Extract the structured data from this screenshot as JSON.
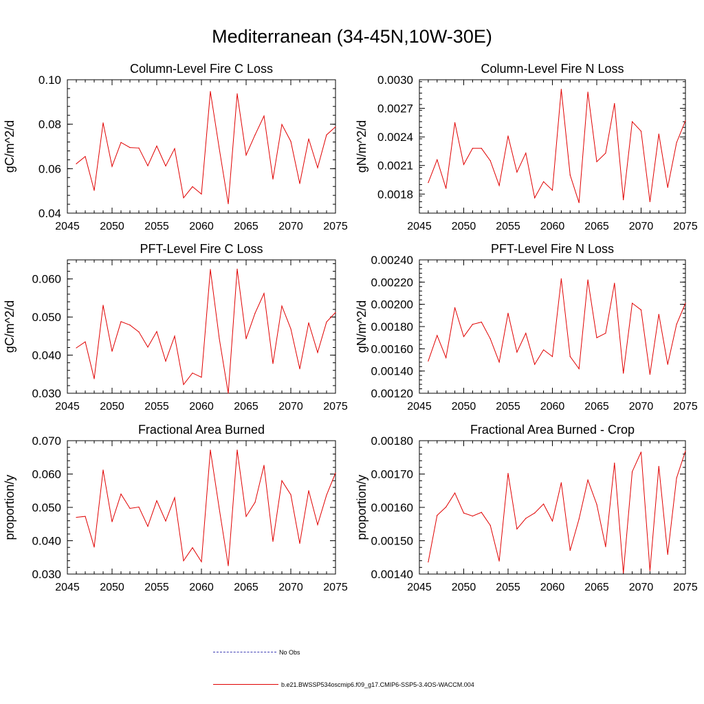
{
  "title": "Mediterranean (34-45N,10W-30E)",
  "colors": {
    "series": "#e00000",
    "obs": "#3b3bb3",
    "axis": "#000000"
  },
  "legend": {
    "obs_label": "No Obs",
    "model_label": "b.e21.BWSSP534oscmip6.f09_g17.CMIP6-SSP5-3.4OS-WACCM.004"
  },
  "chart_data": [
    {
      "type": "line",
      "title": "Column-Level Fire C Loss",
      "ylabel": "gC/m^2/d",
      "xlim": [
        2045,
        2075
      ],
      "ylim": [
        0.04,
        0.1
      ],
      "xticks": [
        2045,
        2050,
        2055,
        2060,
        2065,
        2070,
        2075
      ],
      "xtick_labels": [
        "2045",
        "2050",
        "2055",
        "2060",
        "2065",
        "2070",
        "2075"
      ],
      "yticks": [
        0.04,
        0.06,
        0.08,
        0.1
      ],
      "ytick_labels": [
        "0.04",
        "0.06",
        "0.08",
        "0.10"
      ],
      "x": [
        2046,
        2047,
        2048,
        2049,
        2050,
        2051,
        2052,
        2053,
        2054,
        2055,
        2056,
        2057,
        2058,
        2059,
        2060,
        2061,
        2062,
        2063,
        2064,
        2065,
        2066,
        2067,
        2068,
        2069,
        2070,
        2071,
        2072,
        2073,
        2074,
        2075
      ],
      "series": [
        {
          "name": "b.e21.BWSSP534oscmip6.f09_g17.CMIP6-SSP5-3.4OS-WACCM.004",
          "values": [
            0.0622,
            0.0655,
            0.0502,
            0.0806,
            0.061,
            0.0718,
            0.0695,
            0.0693,
            0.0613,
            0.0702,
            0.0612,
            0.069,
            0.0469,
            0.0519,
            0.0486,
            0.0947,
            0.0689,
            0.0442,
            0.0937,
            0.0661,
            0.0752,
            0.0837,
            0.0553,
            0.0799,
            0.0723,
            0.0533,
            0.0734,
            0.0604,
            0.0752,
            0.0788
          ]
        }
      ]
    },
    {
      "type": "line",
      "title": "Column-Level Fire N Loss",
      "ylabel": "gN/m^2/d",
      "xlim": [
        2045,
        2075
      ],
      "ylim": [
        0.0016,
        0.003
      ],
      "xticks": [
        2045,
        2050,
        2055,
        2060,
        2065,
        2070,
        2075
      ],
      "xtick_labels": [
        "2045",
        "2050",
        "2055",
        "2060",
        "2065",
        "2070",
        "2075"
      ],
      "yticks": [
        0.0018,
        0.0021,
        0.0024,
        0.0027,
        0.003
      ],
      "ytick_labels": [
        "0.0018",
        "0.0021",
        "0.0024",
        "0.0027",
        "0.0030"
      ],
      "x": [
        2046,
        2047,
        2048,
        2049,
        2050,
        2051,
        2052,
        2053,
        2054,
        2055,
        2056,
        2057,
        2058,
        2059,
        2060,
        2061,
        2062,
        2063,
        2064,
        2065,
        2066,
        2067,
        2068,
        2069,
        2070,
        2071,
        2072,
        2073,
        2074,
        2075
      ],
      "series": [
        {
          "name": "b.e21.BWSSP534oscmip6.f09_g17.CMIP6-SSP5-3.4OS-WACCM.004",
          "values": [
            0.00192,
            0.00216,
            0.00186,
            0.00255,
            0.00211,
            0.00228,
            0.00228,
            0.00215,
            0.00189,
            0.00241,
            0.00203,
            0.00223,
            0.00176,
            0.00193,
            0.00184,
            0.0029,
            0.002,
            0.00171,
            0.00287,
            0.00214,
            0.00223,
            0.00275,
            0.00174,
            0.00256,
            0.00246,
            0.00172,
            0.00243,
            0.00187,
            0.00234,
            0.00257
          ]
        }
      ]
    },
    {
      "type": "line",
      "title": "PFT-Level Fire C Loss",
      "ylabel": "gC/m^2/d",
      "xlim": [
        2045,
        2075
      ],
      "ylim": [
        0.03,
        0.065
      ],
      "xticks": [
        2045,
        2050,
        2055,
        2060,
        2065,
        2070,
        2075
      ],
      "xtick_labels": [
        "2045",
        "2050",
        "2055",
        "2060",
        "2065",
        "2070",
        "2075"
      ],
      "yticks": [
        0.03,
        0.04,
        0.05,
        0.06
      ],
      "ytick_labels": [
        "0.030",
        "0.040",
        "0.050",
        "0.060"
      ],
      "x": [
        2046,
        2047,
        2048,
        2049,
        2050,
        2051,
        2052,
        2053,
        2054,
        2055,
        2056,
        2057,
        2058,
        2059,
        2060,
        2061,
        2062,
        2063,
        2064,
        2065,
        2066,
        2067,
        2068,
        2069,
        2070,
        2071,
        2072,
        2073,
        2074,
        2075
      ],
      "series": [
        {
          "name": "b.e21.BWSSP534oscmip6.f09_g17.CMIP6-SSP5-3.4OS-WACCM.004",
          "values": [
            0.0419,
            0.0435,
            0.0338,
            0.0531,
            0.041,
            0.0488,
            0.0479,
            0.0461,
            0.0421,
            0.0462,
            0.0384,
            0.045,
            0.0323,
            0.0353,
            0.0342,
            0.0625,
            0.0443,
            0.03,
            0.0626,
            0.0443,
            0.051,
            0.0562,
            0.0378,
            0.0529,
            0.0469,
            0.0364,
            0.0485,
            0.0407,
            0.0487,
            0.0512
          ]
        }
      ]
    },
    {
      "type": "line",
      "title": "PFT-Level Fire N Loss",
      "ylabel": "gN/m^2/d",
      "xlim": [
        2045,
        2075
      ],
      "ylim": [
        0.0012,
        0.0024
      ],
      "xticks": [
        2045,
        2050,
        2055,
        2060,
        2065,
        2070,
        2075
      ],
      "xtick_labels": [
        "2045",
        "2050",
        "2055",
        "2060",
        "2065",
        "2070",
        "2075"
      ],
      "yticks": [
        0.0012,
        0.0014,
        0.0016,
        0.0018,
        0.002,
        0.0022,
        0.0024
      ],
      "ytick_labels": [
        "0.00120",
        "0.00140",
        "0.00160",
        "0.00180",
        "0.00200",
        "0.00220",
        "0.00240"
      ],
      "x": [
        2046,
        2047,
        2048,
        2049,
        2050,
        2051,
        2052,
        2053,
        2054,
        2055,
        2056,
        2057,
        2058,
        2059,
        2060,
        2061,
        2062,
        2063,
        2064,
        2065,
        2066,
        2067,
        2068,
        2069,
        2070,
        2071,
        2072,
        2073,
        2074,
        2075
      ],
      "series": [
        {
          "name": "b.e21.BWSSP534oscmip6.f09_g17.CMIP6-SSP5-3.4OS-WACCM.004",
          "values": [
            0.00149,
            0.00172,
            0.00152,
            0.00197,
            0.00171,
            0.00182,
            0.00184,
            0.00169,
            0.00148,
            0.00192,
            0.00157,
            0.00174,
            0.00146,
            0.00159,
            0.00153,
            0.00223,
            0.00153,
            0.00142,
            0.00222,
            0.0017,
            0.00174,
            0.00219,
            0.00138,
            0.00201,
            0.00195,
            0.00137,
            0.00191,
            0.00146,
            0.00182,
            0.00201
          ]
        }
      ]
    },
    {
      "type": "line",
      "title": "Fractional Area Burned",
      "ylabel": "proportion/y",
      "xlim": [
        2045,
        2075
      ],
      "ylim": [
        0.03,
        0.07
      ],
      "xticks": [
        2045,
        2050,
        2055,
        2060,
        2065,
        2070,
        2075
      ],
      "xtick_labels": [
        "2045",
        "2050",
        "2055",
        "2060",
        "2065",
        "2070",
        "2075"
      ],
      "yticks": [
        0.03,
        0.04,
        0.05,
        0.06,
        0.07
      ],
      "ytick_labels": [
        "0.030",
        "0.040",
        "0.050",
        "0.060",
        "0.070"
      ],
      "x": [
        2046,
        2047,
        2048,
        2049,
        2050,
        2051,
        2052,
        2053,
        2054,
        2055,
        2056,
        2057,
        2058,
        2059,
        2060,
        2061,
        2062,
        2063,
        2064,
        2065,
        2066,
        2067,
        2068,
        2069,
        2070,
        2071,
        2072,
        2073,
        2074,
        2075
      ],
      "series": [
        {
          "name": "b.e21.BWSSP534oscmip6.f09_g17.CMIP6-SSP5-3.4OS-WACCM.004",
          "values": [
            0.047,
            0.0473,
            0.0381,
            0.0612,
            0.0457,
            0.054,
            0.0497,
            0.0501,
            0.0443,
            0.052,
            0.0459,
            0.0529,
            0.034,
            0.0379,
            0.0337,
            0.0672,
            0.0495,
            0.0325,
            0.0672,
            0.0473,
            0.0515,
            0.0626,
            0.0398,
            0.058,
            0.0538,
            0.0392,
            0.055,
            0.0448,
            0.0537,
            0.0603
          ]
        }
      ]
    },
    {
      "type": "line",
      "title": "Fractional Area Burned - Crop",
      "ylabel": "proportion/y",
      "xlim": [
        2045,
        2075
      ],
      "ylim": [
        0.0014,
        0.0018
      ],
      "xticks": [
        2045,
        2050,
        2055,
        2060,
        2065,
        2070,
        2075
      ],
      "xtick_labels": [
        "2045",
        "2050",
        "2055",
        "2060",
        "2065",
        "2070",
        "2075"
      ],
      "yticks": [
        0.0014,
        0.0015,
        0.0016,
        0.0017,
        0.0018
      ],
      "ytick_labels": [
        "0.00140",
        "0.00150",
        "0.00160",
        "0.00170",
        "0.00180"
      ],
      "x": [
        2046,
        2047,
        2048,
        2049,
        2050,
        2051,
        2052,
        2053,
        2054,
        2055,
        2056,
        2057,
        2058,
        2059,
        2060,
        2061,
        2062,
        2063,
        2064,
        2065,
        2066,
        2067,
        2068,
        2069,
        2070,
        2071,
        2072,
        2073,
        2074,
        2075
      ],
      "series": [
        {
          "name": "b.e21.BWSSP534oscmip6.f09_g17.CMIP6-SSP5-3.4OS-WACCM.004",
          "values": [
            0.001436,
            0.001576,
            0.001601,
            0.001643,
            0.001583,
            0.001574,
            0.001585,
            0.001546,
            0.001439,
            0.001702,
            0.001535,
            0.001567,
            0.001583,
            0.00161,
            0.001559,
            0.001674,
            0.001471,
            0.001565,
            0.001682,
            0.001609,
            0.001482,
            0.001733,
            0.001403,
            0.001707,
            0.001766,
            0.00141,
            0.001723,
            0.001459,
            0.001688,
            0.001769
          ]
        }
      ]
    }
  ]
}
